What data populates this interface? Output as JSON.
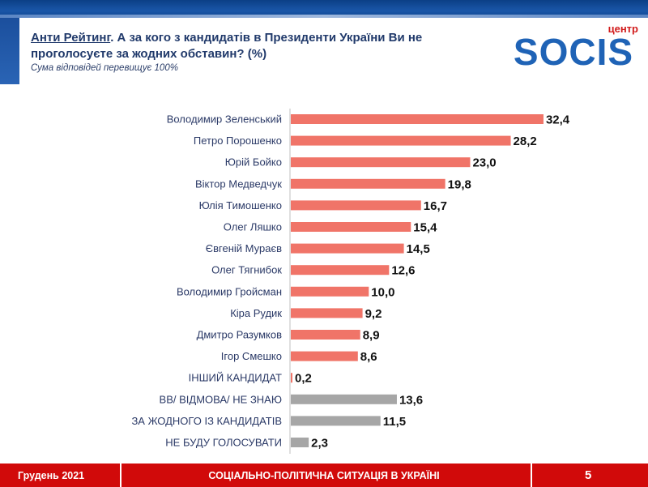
{
  "header": {
    "title_part1": "Анти Рейтинг",
    "title_part2": ". А за кого з кандидатів в Президенти України Ви не проголосуєте за жодних обставин? (%)",
    "subtitle": "Сума відповідей перевищує 100%"
  },
  "logo": {
    "brand": "SOCIS",
    "small_text": "центр"
  },
  "colors": {
    "bar_candidate": "#f07468",
    "bar_other": "#a6a6a6",
    "footer": "#d10a0a",
    "brand_blue": "#1f63b6",
    "brand_red": "#d11a1a"
  },
  "chart_data": {
    "type": "bar",
    "orientation": "horizontal",
    "categories": [
      "Володимир Зеленський",
      "Петро Порошенко",
      "Юрій Бойко",
      "Віктор Медведчук",
      "Юлія Тимошенко",
      "Олег Ляшко",
      "Євгеній Мураєв",
      "Олег Тягнибок",
      "Володимир Гройсман",
      "Кіра Рудик",
      "Дмитро Разумков",
      "Ігор Смешко",
      "ІНШИЙ КАНДИДАТ",
      "ВВ/ ВІДМОВА/ НЕ ЗНАЮ",
      "ЗА ЖОДНОГО ІЗ КАНДИДАТІВ",
      "НЕ БУДУ ГОЛОСУВАТИ"
    ],
    "values": [
      32.4,
      28.2,
      23.0,
      19.8,
      16.7,
      15.4,
      14.5,
      12.6,
      10.0,
      9.2,
      8.9,
      8.6,
      0.2,
      13.6,
      11.5,
      2.3
    ],
    "value_labels": [
      "32,4",
      "28,2",
      "23,0",
      "19,8",
      "16,7",
      "15,4",
      "14,5",
      "12,6",
      "10,0",
      "9,2",
      "8,9",
      "8,6",
      "0,2",
      "13,6",
      "11,5",
      "2,3"
    ],
    "bar_colors": [
      "#f07468",
      "#f07468",
      "#f07468",
      "#f07468",
      "#f07468",
      "#f07468",
      "#f07468",
      "#f07468",
      "#f07468",
      "#f07468",
      "#f07468",
      "#f07468",
      "#f07468",
      "#a6a6a6",
      "#a6a6a6",
      "#a6a6a6"
    ],
    "xlim": [
      0,
      35
    ],
    "grid": false,
    "legend": "none"
  },
  "footer": {
    "date": "Грудень 2021",
    "topic": "СОЦІАЛЬНО-ПОЛІТИЧНА СИТУАЦІЯ В УКРАЇНІ",
    "page": "5"
  }
}
